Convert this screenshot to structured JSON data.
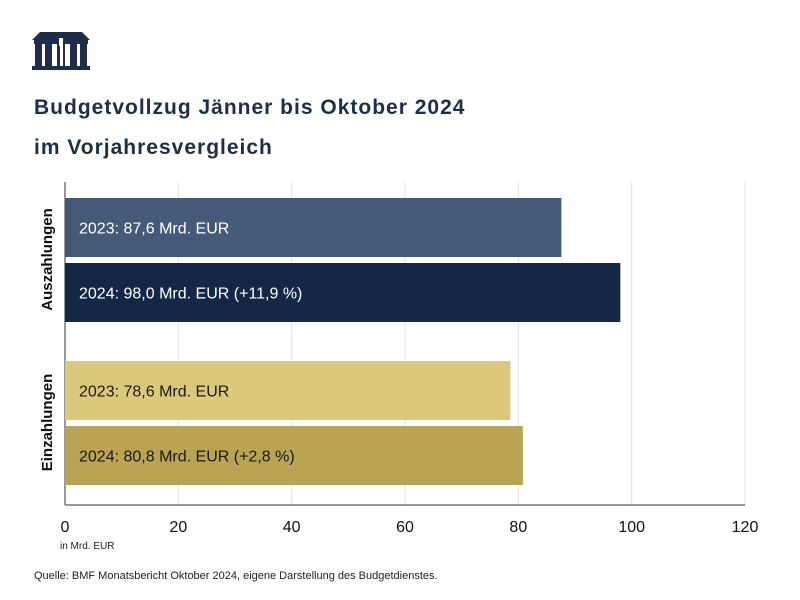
{
  "header": {
    "logo": "Parlament Österreich",
    "title_line1": "Budgetvollzug Jänner bis Oktober 2024",
    "title_line2": "im Vorjahresvergleich"
  },
  "chart_data": {
    "type": "bar",
    "orientation": "horizontal",
    "categories": [
      "Auszahlungen",
      "Einzahlungen"
    ],
    "bars": [
      {
        "category": "Auszahlungen",
        "year": "2023",
        "value": 87.6,
        "label": "2023: 87,6 Mrd. EUR",
        "color": "#455a78",
        "text_color": "#ffffff"
      },
      {
        "category": "Auszahlungen",
        "year": "2024",
        "value": 98.0,
        "label": "2024: 98,0 Mrd. EUR (+11,9 %)",
        "color": "#142845",
        "text_color": "#ffffff"
      },
      {
        "category": "Einzahlungen",
        "year": "2023",
        "value": 78.6,
        "label": "2023: 78,6 Mrd. EUR",
        "color": "#dcc87a",
        "text_color": "#1a1a1a"
      },
      {
        "category": "Einzahlungen",
        "year": "2024",
        "value": 80.8,
        "label": "2024: 80,8 Mrd. EUR (+2,8 %)",
        "color": "#b8a452",
        "text_color": "#1a1a1a"
      }
    ],
    "xlim": [
      0,
      120
    ],
    "xticks": [
      "0",
      "20",
      "40",
      "60",
      "80",
      "100",
      "120"
    ],
    "xlabel": "in Mrd. EUR",
    "grid": "vertical"
  },
  "footer": {
    "source": "Quelle: BMF Monatsbericht Oktober 2024, eigene Darstellung des Budgetdienstes."
  }
}
